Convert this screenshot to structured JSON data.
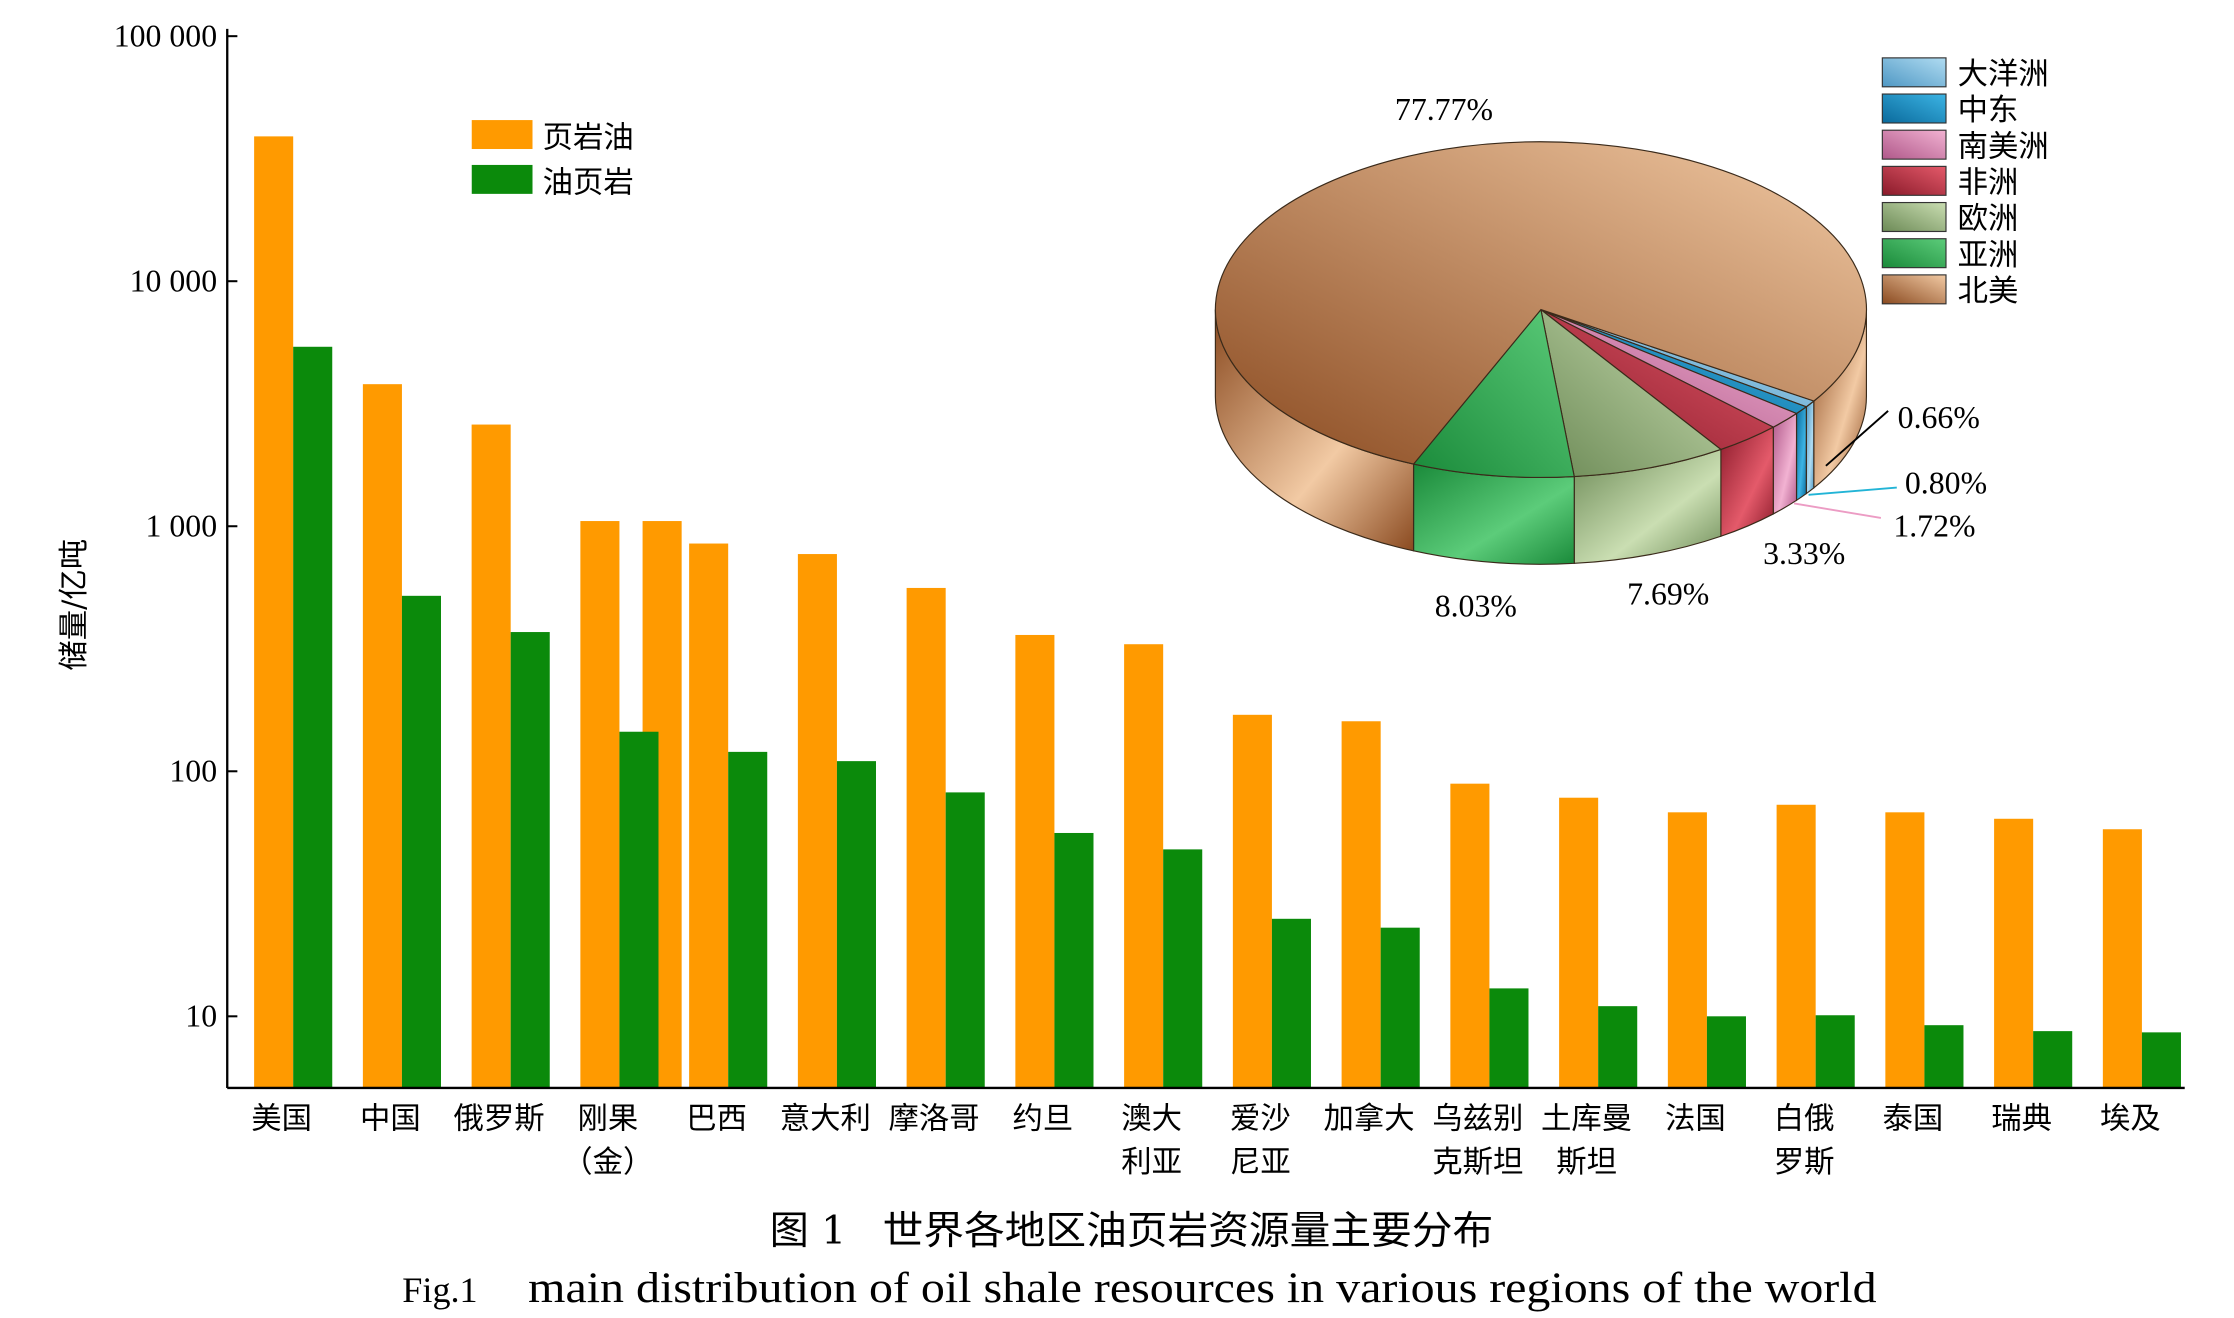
{
  "caption": {
    "zh_label": "图 1",
    "zh_title": "世界各地区油页岩资源量主要分布",
    "en_label": "Fig.1",
    "en_title": "main distribution of oil shale resources in various regions of the world"
  },
  "chart_data": [
    {
      "type": "bar",
      "xlabel": "",
      "ylabel": "储量/亿吨",
      "yscale": "log",
      "ylim": [
        5.1,
        100000
      ],
      "grid": false,
      "legend_position": "top-left",
      "yticks": [
        {
          "value": 10,
          "label": "10"
        },
        {
          "value": 100,
          "label": "100"
        },
        {
          "value": 1000,
          "label": "1 000"
        },
        {
          "value": 10000,
          "label": "10 000"
        },
        {
          "value": 100000,
          "label": "100 000"
        }
      ],
      "categories": [
        "美国",
        "中国",
        "俄罗斯",
        "刚果\n（金）",
        "巴西",
        "意大利",
        "摩洛哥",
        "约旦",
        "澳大\n利亚",
        "爱沙\n尼亚",
        "加拿大",
        "乌兹别\n克斯坦",
        "土库曼\n斯坦",
        "法国",
        "白俄\n罗斯",
        "泰国",
        "瑞典",
        "埃及"
      ],
      "series": [
        {
          "name": "页岩油",
          "color": "#ff9a00",
          "values": [
            39000,
            3800,
            2600,
            1050,
            850,
            770,
            560,
            360,
            330,
            170,
            160,
            89,
            78,
            68,
            73,
            68,
            64,
            58
          ]
        },
        {
          "name": "油页岩",
          "color": "#0b8a0b",
          "values": [
            5400,
            520,
            370,
            145,
            120,
            110,
            82,
            56,
            48,
            25,
            23,
            13,
            11,
            10,
            10.1,
            9.2,
            8.7,
            8.6
          ]
        }
      ]
    },
    {
      "type": "pie",
      "three_d": true,
      "legend_position": "top-right",
      "slices": [
        {
          "label": "大洋洲",
          "value": 0.66,
          "color": "#b0dcf2",
          "shade": "#4f98c4",
          "leader_color": "#000000"
        },
        {
          "label": "中东",
          "value": 0.8,
          "color": "#3cb4e4",
          "shade": "#0a6a9c",
          "leader_color": "#22b4d6"
        },
        {
          "label": "南美洲",
          "value": 1.72,
          "color": "#f2b2d2",
          "shade": "#b0588a",
          "leader_color": "#ec9cc4"
        },
        {
          "label": "非洲",
          "value": 3.33,
          "color": "#e45a6a",
          "shade": "#8a1a2a"
        },
        {
          "label": "欧洲",
          "value": 7.69,
          "color": "#cadeb2",
          "shade": "#6c8a56"
        },
        {
          "label": "亚洲",
          "value": 8.03,
          "color": "#5ccc7a",
          "shade": "#1a8a3a"
        },
        {
          "label": "北美",
          "value": 77.77,
          "color": "#f2caa4",
          "shade": "#8a4a20"
        }
      ]
    }
  ]
}
